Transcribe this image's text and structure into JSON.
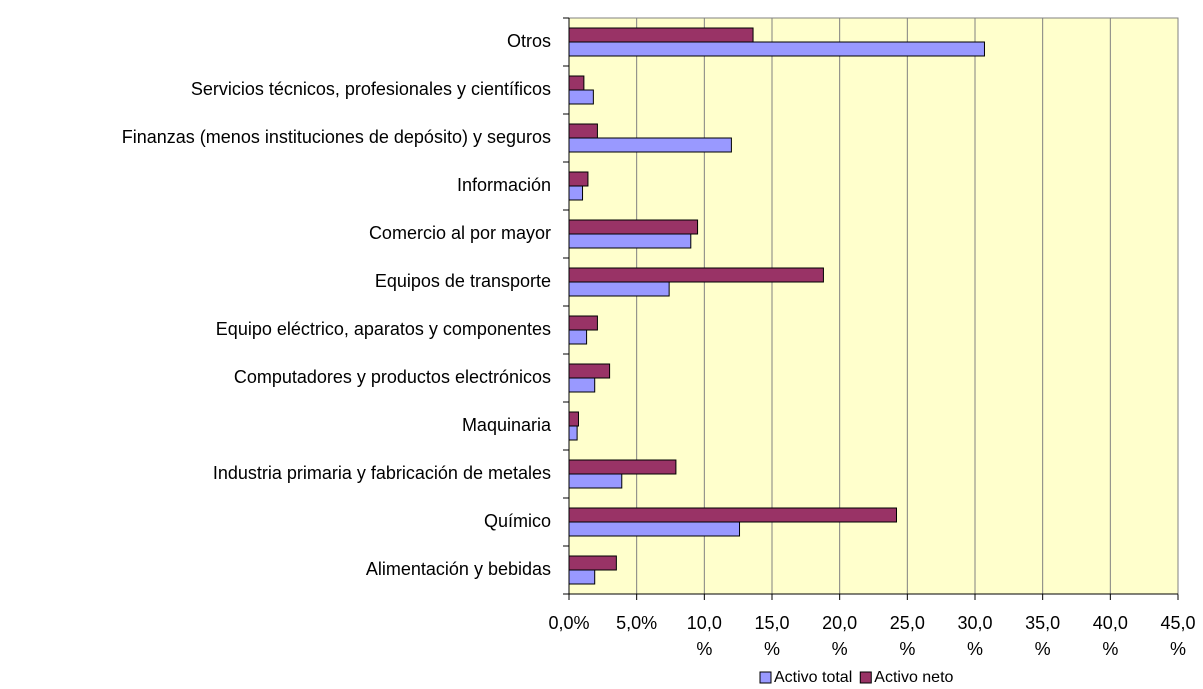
{
  "chart_data": {
    "type": "barh",
    "categories": [
      "Otros",
      "Servicios técnicos, profesionales y científicos",
      "Finanzas (menos instituciones de depósito) y seguros",
      "Información",
      "Comercio al por mayor",
      "Equipos de transporte",
      "Equipo eléctrico, aparatos y componentes",
      "Computadores y productos electrónicos",
      "Maquinaria",
      "Industria primaria y fabricación de metales",
      "Químico",
      "Alimentación y bebidas"
    ],
    "series": [
      {
        "name": "Activo total",
        "color": "#9999ff",
        "values": [
          30.7,
          1.8,
          12.0,
          1.0,
          9.0,
          7.4,
          1.3,
          1.9,
          0.6,
          3.9,
          12.6,
          1.9
        ]
      },
      {
        "name": "Activo neto",
        "color": "#993366",
        "values": [
          13.6,
          1.1,
          2.1,
          1.4,
          9.5,
          18.8,
          2.1,
          3.0,
          0.7,
          7.9,
          24.2,
          3.5
        ]
      }
    ],
    "xlim": [
      0,
      45
    ],
    "xticks": [
      {
        "value": 0,
        "label": "0,0%"
      },
      {
        "value": 5,
        "label": "5,0%"
      },
      {
        "value": 10,
        "label": "10,0 %"
      },
      {
        "value": 15,
        "label": "15,0 %"
      },
      {
        "value": 20,
        "label": "20,0 %"
      },
      {
        "value": 25,
        "label": "25,0 %"
      },
      {
        "value": 30,
        "label": "30,0 %"
      },
      {
        "value": 35,
        "label": "35,0 %"
      },
      {
        "value": 40,
        "label": "40,0 %"
      },
      {
        "value": 45,
        "label": "45,0 %"
      }
    ],
    "grid": true,
    "plot_background": "#ffffcc",
    "legend": "bottom"
  }
}
